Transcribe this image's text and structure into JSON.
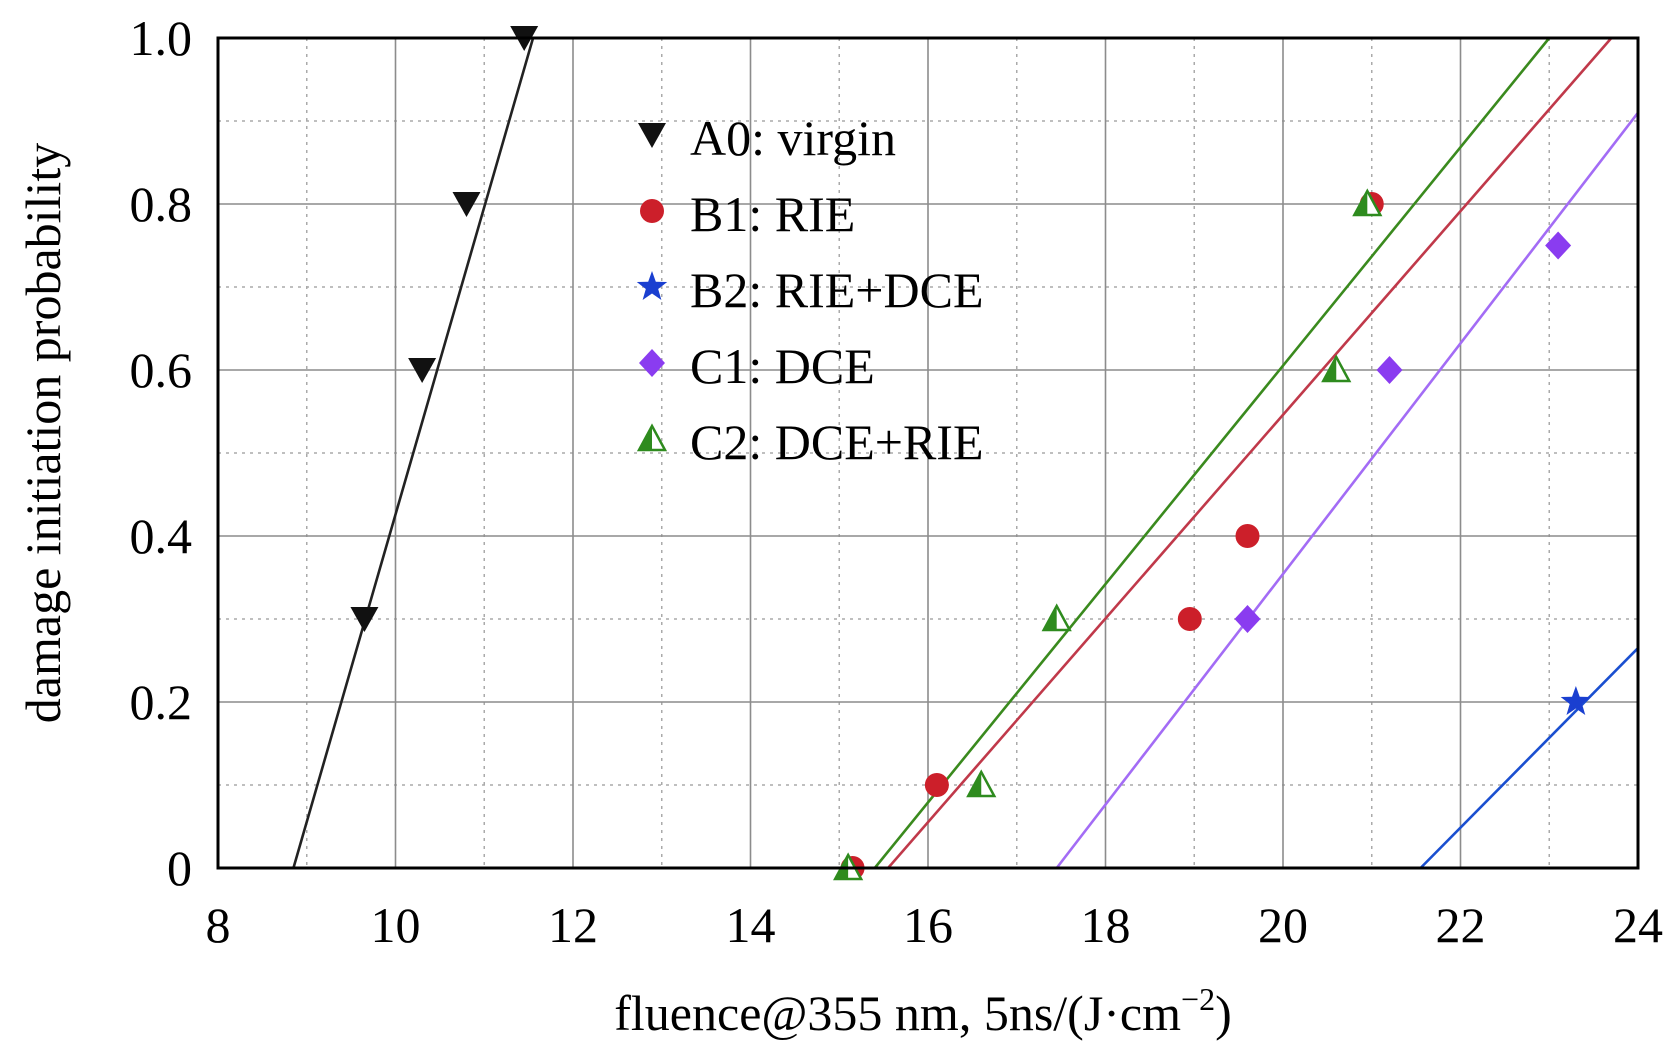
{
  "chart_data": {
    "type": "scatter",
    "xlabel_main": "fluence@355 nm, 5ns/(J·cm",
    "xlabel_sup": "−2",
    "xlabel_end": ")",
    "ylabel": "damage initiation probability",
    "xlim": [
      8,
      24
    ],
    "ylim": [
      0,
      1.0
    ],
    "x_ticks": [
      8,
      10,
      12,
      14,
      16,
      18,
      20,
      22,
      24
    ],
    "x_tick_labels": [
      "8",
      "10",
      "12",
      "14",
      "16",
      "18",
      "20",
      "22",
      "24"
    ],
    "y_ticks": [
      0,
      0.2,
      0.4,
      0.6,
      0.8,
      1.0
    ],
    "y_tick_labels": [
      "0",
      "0.2",
      "0.4",
      "0.6",
      "0.8",
      "1.0"
    ],
    "grid": true,
    "legend_position": "top-left",
    "series": [
      {
        "name": "A0: virgin",
        "marker": "triangle-down",
        "color": "#111111",
        "line_color": "#222222",
        "points": [
          [
            9.65,
            0.3
          ],
          [
            10.3,
            0.6
          ],
          [
            10.8,
            0.8
          ],
          [
            11.45,
            1.0
          ]
        ],
        "fit": [
          [
            8.85,
            0.0
          ],
          [
            11.55,
            1.0
          ]
        ]
      },
      {
        "name": "B1: RIE",
        "marker": "circle",
        "color": "#cc1f2a",
        "line_color": "#c0394a",
        "points": [
          [
            15.15,
            0.0
          ],
          [
            16.1,
            0.1
          ],
          [
            18.95,
            0.3
          ],
          [
            19.6,
            0.4
          ],
          [
            21.0,
            0.8
          ]
        ],
        "fit": [
          [
            15.55,
            0.0
          ],
          [
            23.7,
            1.0
          ]
        ]
      },
      {
        "name": "B2: RIE+DCE",
        "marker": "star",
        "color": "#1a3fd0",
        "line_color": "#1a4fd0",
        "points": [
          [
            23.3,
            0.2
          ]
        ],
        "fit": [
          [
            21.55,
            0.0
          ],
          [
            24.0,
            0.265
          ]
        ]
      },
      {
        "name": "C1: DCE",
        "marker": "diamond",
        "color": "#8a3cf0",
        "line_color": "#a36cf5",
        "points": [
          [
            19.6,
            0.3
          ],
          [
            21.2,
            0.6
          ],
          [
            23.1,
            0.75
          ]
        ],
        "fit": [
          [
            17.45,
            0.0
          ],
          [
            24.0,
            0.91
          ]
        ]
      },
      {
        "name": "C2: DCE+RIE",
        "marker": "half-triangle",
        "color": "#2e8b1e",
        "line_color": "#3a8a1e",
        "points": [
          [
            15.1,
            0.0
          ],
          [
            16.6,
            0.1
          ],
          [
            17.45,
            0.3
          ],
          [
            20.6,
            0.6
          ],
          [
            20.95,
            0.8
          ]
        ],
        "fit": [
          [
            15.4,
            0.0
          ],
          [
            23.0,
            1.0
          ]
        ]
      }
    ]
  }
}
